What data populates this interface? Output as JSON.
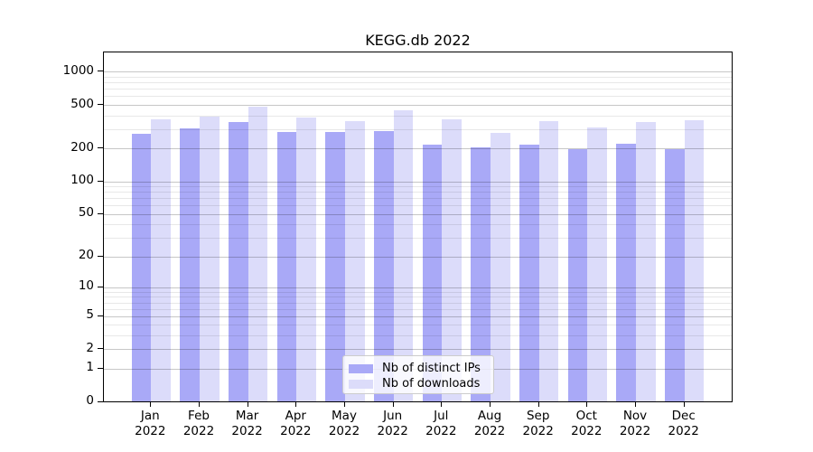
{
  "chart_data": {
    "type": "bar",
    "title": "KEGG.db 2022",
    "scale": "log1p",
    "grid": "horizontal",
    "legend_position": "lower-center",
    "categories": [
      "Jan",
      "Feb",
      "Mar",
      "Apr",
      "May",
      "Jun",
      "Jul",
      "Aug",
      "Sep",
      "Oct",
      "Nov",
      "Dec"
    ],
    "category_year": "2022",
    "series": [
      {
        "name": "Nb of distinct IPs",
        "color": "#a9a9f7",
        "values": [
          270,
          300,
          346,
          279,
          282,
          286,
          215,
          205,
          215,
          196,
          220,
          195
        ]
      },
      {
        "name": "Nb of downloads",
        "color": "#dcdcfa",
        "values": [
          364,
          391,
          481,
          381,
          353,
          440,
          364,
          274,
          350,
          310,
          346,
          360
        ]
      }
    ],
    "y_ticks": [
      0,
      1,
      2,
      5,
      10,
      20,
      50,
      100,
      200,
      500,
      1000
    ],
    "y_minor_gridlines": [
      3,
      4,
      6,
      7,
      8,
      9,
      30,
      40,
      60,
      70,
      80,
      90,
      300,
      400,
      600,
      700,
      800,
      900
    ],
    "ylim": [
      0,
      1500
    ]
  }
}
